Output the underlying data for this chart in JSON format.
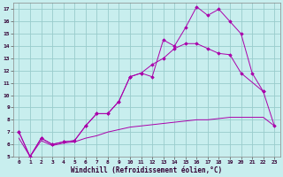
{
  "xlabel": "Windchill (Refroidissement éolien,°C)",
  "background_color": "#c8eeee",
  "line_color": "#aa00aa",
  "grid_color": "#99cccc",
  "xlim": [
    -0.5,
    23.5
  ],
  "ylim": [
    5,
    17.5
  ],
  "xticks": [
    0,
    1,
    2,
    3,
    4,
    5,
    6,
    7,
    8,
    9,
    10,
    11,
    12,
    13,
    14,
    15,
    16,
    17,
    18,
    19,
    20,
    21,
    22,
    23
  ],
  "yticks": [
    5,
    6,
    7,
    8,
    9,
    10,
    11,
    12,
    13,
    14,
    15,
    16,
    17
  ],
  "line1_x": [
    0,
    1,
    2,
    3,
    4,
    5,
    6,
    7,
    8,
    9,
    10,
    11,
    12,
    13,
    14,
    15,
    16,
    17,
    18,
    19,
    20,
    21,
    22
  ],
  "line1_y": [
    7.0,
    5.0,
    6.5,
    6.0,
    6.2,
    6.3,
    7.5,
    8.5,
    8.5,
    9.5,
    11.5,
    11.8,
    11.5,
    14.5,
    14.0,
    15.5,
    17.2,
    16.5,
    17.0,
    16.0,
    15.0,
    11.8,
    10.3
  ],
  "line2_x": [
    0,
    1,
    2,
    3,
    4,
    5,
    6,
    7,
    8,
    9,
    10,
    11,
    12,
    13,
    14,
    15,
    16,
    17,
    18,
    19,
    20,
    22,
    23
  ],
  "line2_y": [
    7.0,
    5.0,
    6.5,
    6.0,
    6.2,
    6.3,
    7.5,
    8.5,
    8.5,
    9.5,
    11.5,
    11.8,
    12.5,
    13.0,
    13.8,
    14.2,
    14.2,
    13.8,
    13.4,
    13.3,
    11.8,
    10.3,
    7.5
  ],
  "line3_x": [
    0,
    1,
    2,
    3,
    4,
    5,
    6,
    7,
    8,
    9,
    10,
    11,
    12,
    13,
    14,
    15,
    16,
    17,
    18,
    19,
    20,
    21,
    22,
    23
  ],
  "line3_y": [
    6.5,
    5.0,
    6.3,
    5.9,
    6.1,
    6.2,
    6.5,
    6.7,
    7.0,
    7.2,
    7.4,
    7.5,
    7.6,
    7.7,
    7.8,
    7.9,
    8.0,
    8.0,
    8.1,
    8.2,
    8.2,
    8.2,
    8.2,
    7.5
  ]
}
